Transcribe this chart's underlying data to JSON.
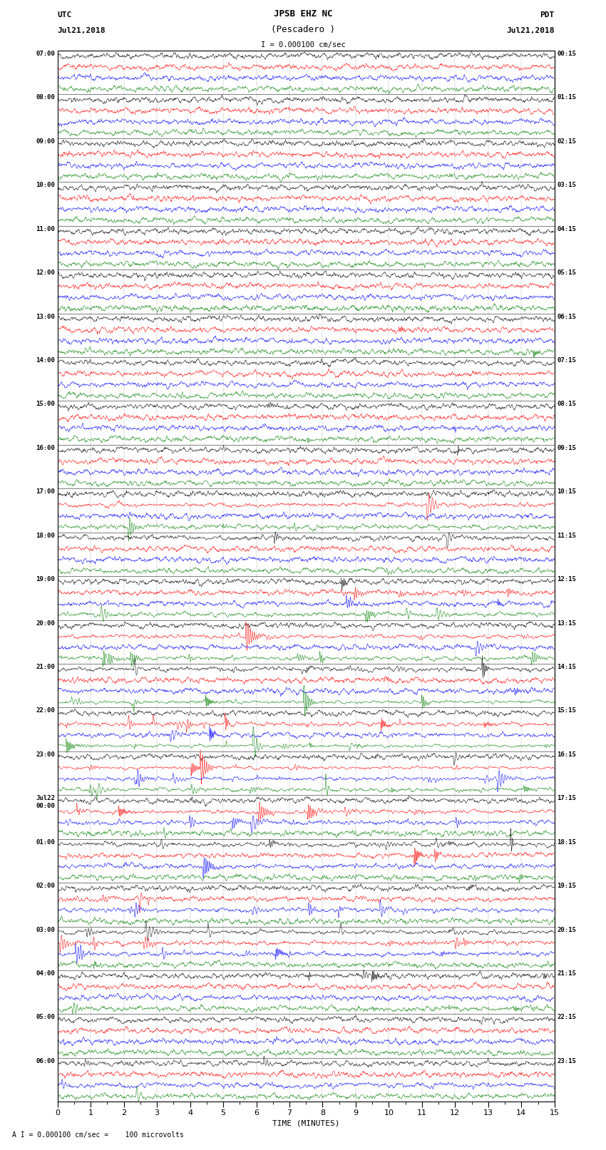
{
  "title_line1": "JPSB EHZ NC",
  "title_line2": "(Pescadero )",
  "scale_label": "I = 0.000100 cm/sec",
  "utc_header": "UTC",
  "utc_date": "Jul21,2018",
  "pdt_header": "PDT",
  "pdt_date": "Jul21,2018",
  "bottom_label": "TIME (MINUTES)",
  "bottom_note": "A I = 0.000100 cm/sec =    100 microvolts",
  "utc_times": [
    "07:00",
    "08:00",
    "09:00",
    "10:00",
    "11:00",
    "12:00",
    "13:00",
    "14:00",
    "15:00",
    "16:00",
    "17:00",
    "18:00",
    "19:00",
    "20:00",
    "21:00",
    "22:00",
    "23:00",
    "Jul22\n00:00",
    "01:00",
    "02:00",
    "03:00",
    "04:00",
    "05:00",
    "06:00"
  ],
  "pdt_times": [
    "00:15",
    "01:15",
    "02:15",
    "03:15",
    "04:15",
    "05:15",
    "06:15",
    "07:15",
    "08:15",
    "09:15",
    "10:15",
    "11:15",
    "12:15",
    "13:15",
    "14:15",
    "15:15",
    "16:15",
    "17:15",
    "18:15",
    "19:15",
    "20:15",
    "21:15",
    "22:15",
    "23:15"
  ],
  "trace_colors": [
    "black",
    "red",
    "blue",
    "green"
  ],
  "n_rows": 96,
  "n_points": 1800,
  "x_min": 0,
  "x_max": 15,
  "x_ticks_major": [
    0,
    1,
    2,
    3,
    4,
    5,
    6,
    7,
    8,
    9,
    10,
    11,
    12,
    13,
    14,
    15
  ],
  "bg_color": "white",
  "fig_width": 8.5,
  "fig_height": 16.13,
  "seed": 42
}
